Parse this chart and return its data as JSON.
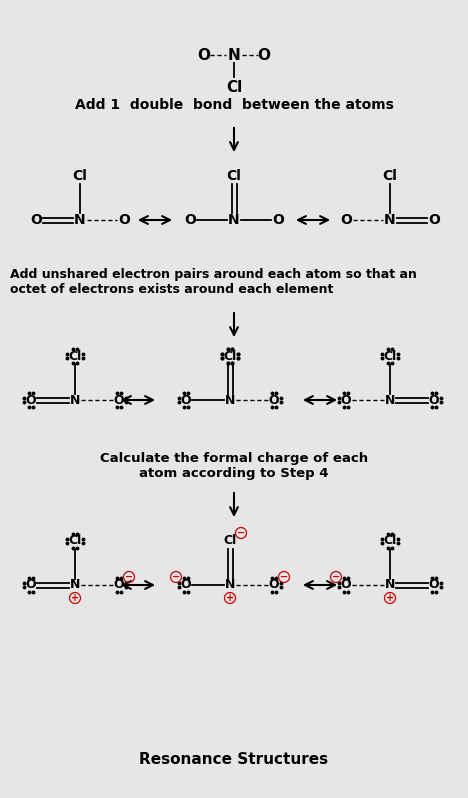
{
  "bg_color": "#e6e6e6",
  "red_color": "#cc0000",
  "section1_label": "Add 1  double  bond  between the atoms",
  "section2_label": "Add unshared electron pairs around each atom so that an\noctet of electrons exists around each element",
  "section3_label": "Calculate the formal charge of each\natom according to Step 4",
  "footer_label": "Resonance Structures",
  "figw": 4.68,
  "figh": 7.98,
  "dpi": 100
}
